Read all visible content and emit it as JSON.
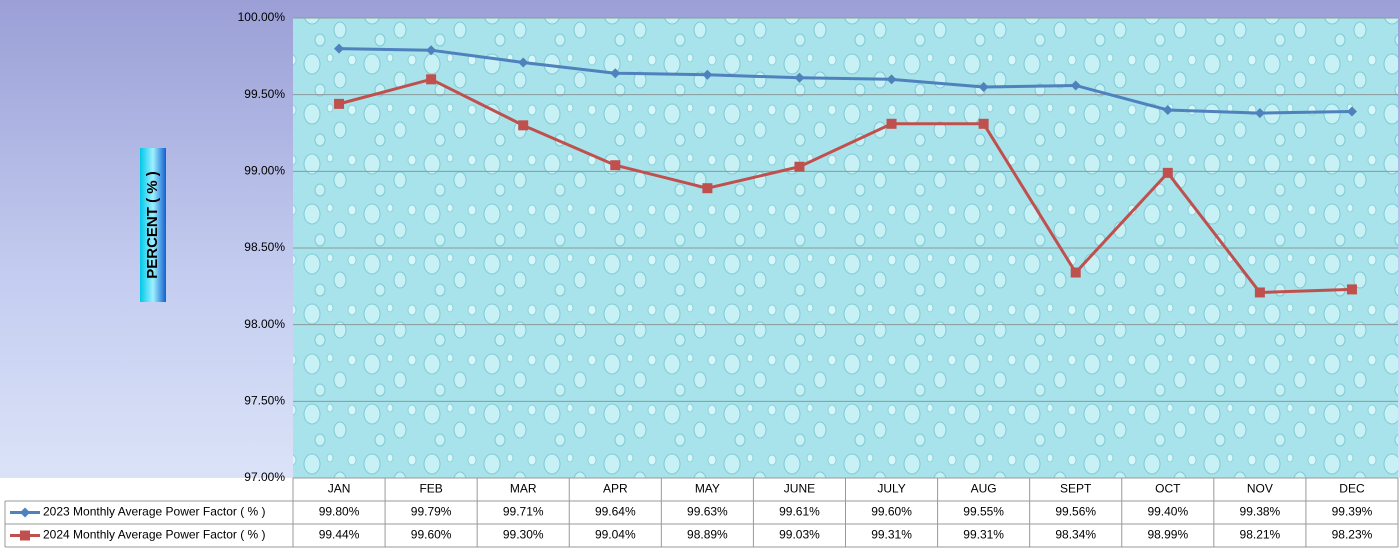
{
  "chart_data": {
    "type": "line",
    "y_label": "PERCENT ( % )",
    "categories": [
      "JAN",
      "FEB",
      "MAR",
      "APR",
      "MAY",
      "JUNE",
      "JULY",
      "AUG",
      "SEPT",
      "OCT",
      "NOV",
      "DEC"
    ],
    "series": [
      {
        "name": "2023 Monthly Average Power Factor ( % )",
        "color": "#4f81bd",
        "marker": "diamond",
        "values": [
          99.8,
          99.79,
          99.71,
          99.64,
          99.63,
          99.61,
          99.6,
          99.55,
          99.56,
          99.4,
          99.38,
          99.39
        ],
        "value_labels": [
          "99.80%",
          "99.79%",
          "99.71%",
          "99.64%",
          "99.63%",
          "99.61%",
          "99.60%",
          "99.55%",
          "99.56%",
          "99.40%",
          "99.38%",
          "99.39%"
        ]
      },
      {
        "name": "2024 Monthly Average Power Factor ( % )",
        "color": "#c0504d",
        "marker": "square",
        "values": [
          99.44,
          99.6,
          99.3,
          99.04,
          98.89,
          99.03,
          99.31,
          99.31,
          98.34,
          98.99,
          98.21,
          98.23
        ],
        "value_labels": [
          "99.44%",
          "99.60%",
          "99.30%",
          "99.04%",
          "98.89%",
          "99.03%",
          "99.31%",
          "99.31%",
          "98.34%",
          "98.99%",
          "98.21%",
          "98.23%"
        ]
      }
    ],
    "ylim": [
      97,
      100
    ],
    "yticks": [
      {
        "value": 97,
        "label": "97.00%"
      },
      {
        "value": 97.5,
        "label": "97.50%"
      },
      {
        "value": 98,
        "label": "98.00%"
      },
      {
        "value": 98.5,
        "label": "98.50%"
      },
      {
        "value": 99,
        "label": "99.00%"
      },
      {
        "value": 99.5,
        "label": "99.50%"
      },
      {
        "value": 100,
        "label": "100.00%"
      }
    ],
    "grid": true,
    "legend": "table"
  }
}
